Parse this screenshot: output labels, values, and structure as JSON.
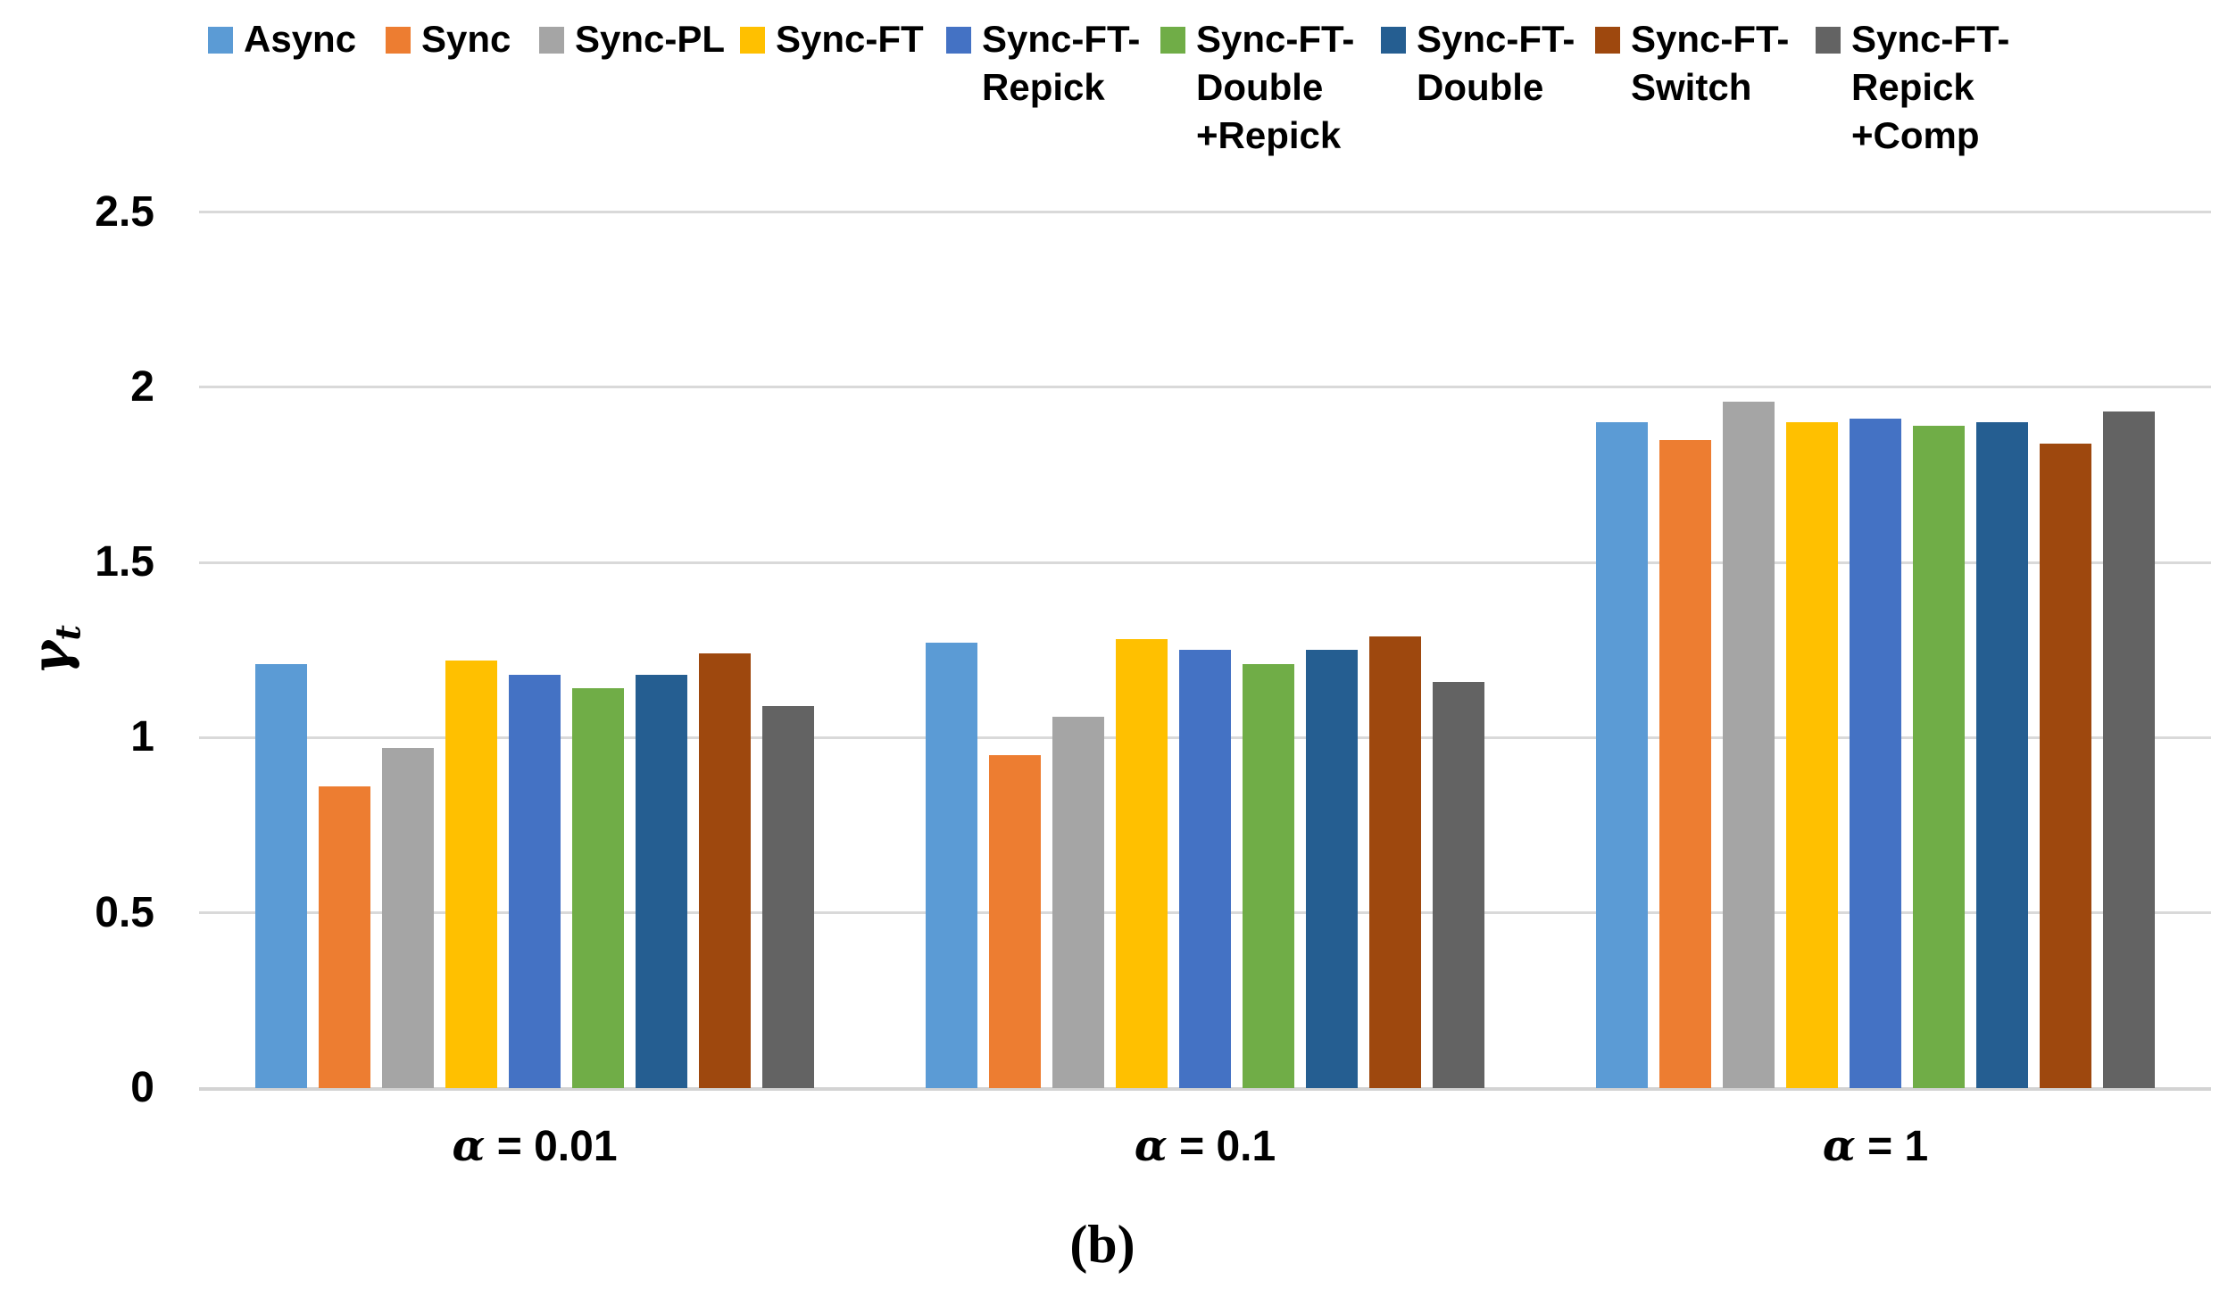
{
  "chart_data": {
    "type": "bar",
    "title": "",
    "caption": "(b)",
    "ylabel": "γ",
    "ylabel_subscript": "t",
    "xlabel": "",
    "ylim": [
      0,
      2.5
    ],
    "ytick_step": 0.5,
    "ytick_labels": [
      "0",
      "0.5",
      "1",
      "1.5",
      "2",
      "2.5"
    ],
    "grid": "horizontal",
    "legend_position": "top",
    "gridline_color": "#d9d9d9",
    "axis_line_color": "#d3d3d3",
    "text_color": "#000000",
    "background_color": "#ffffff",
    "categories": [
      "α = 0.01",
      "α = 0.1",
      "α = 1"
    ],
    "series": [
      {
        "name": "Async",
        "legend_lines": [
          "Async"
        ],
        "color": "#5B9BD5",
        "values": [
          1.21,
          1.27,
          1.9
        ]
      },
      {
        "name": "Sync",
        "legend_lines": [
          "Sync"
        ],
        "color": "#ED7D31",
        "values": [
          0.86,
          0.95,
          1.85
        ]
      },
      {
        "name": "Sync-PL",
        "legend_lines": [
          "Sync-PL"
        ],
        "color": "#A5A5A5",
        "values": [
          0.97,
          1.06,
          1.96
        ]
      },
      {
        "name": "Sync-FT",
        "legend_lines": [
          "Sync-FT"
        ],
        "color": "#FFC000",
        "values": [
          1.22,
          1.28,
          1.9
        ]
      },
      {
        "name": "Sync-FT-Repick",
        "legend_lines": [
          "Sync-FT-",
          "Repick"
        ],
        "color": "#4472C4",
        "values": [
          1.18,
          1.25,
          1.91
        ]
      },
      {
        "name": "Sync-FT-Double+Repick",
        "legend_lines": [
          "Sync-FT-",
          "Double",
          "+Repick"
        ],
        "color": "#70AD47",
        "values": [
          1.14,
          1.21,
          1.89
        ]
      },
      {
        "name": "Sync-FT-Double",
        "legend_lines": [
          "Sync-FT-",
          "Double"
        ],
        "color": "#255E91",
        "values": [
          1.18,
          1.25,
          1.9
        ]
      },
      {
        "name": "Sync-FT-Switch",
        "legend_lines": [
          "Sync-FT-",
          "Switch"
        ],
        "color": "#9E480E",
        "values": [
          1.24,
          1.29,
          1.84
        ]
      },
      {
        "name": "Sync-FT-Repick+Comp",
        "legend_lines": [
          "Sync-FT-",
          "Repick",
          "+Comp"
        ],
        "color": "#636363",
        "values": [
          1.09,
          1.16,
          1.93
        ]
      }
    ]
  }
}
